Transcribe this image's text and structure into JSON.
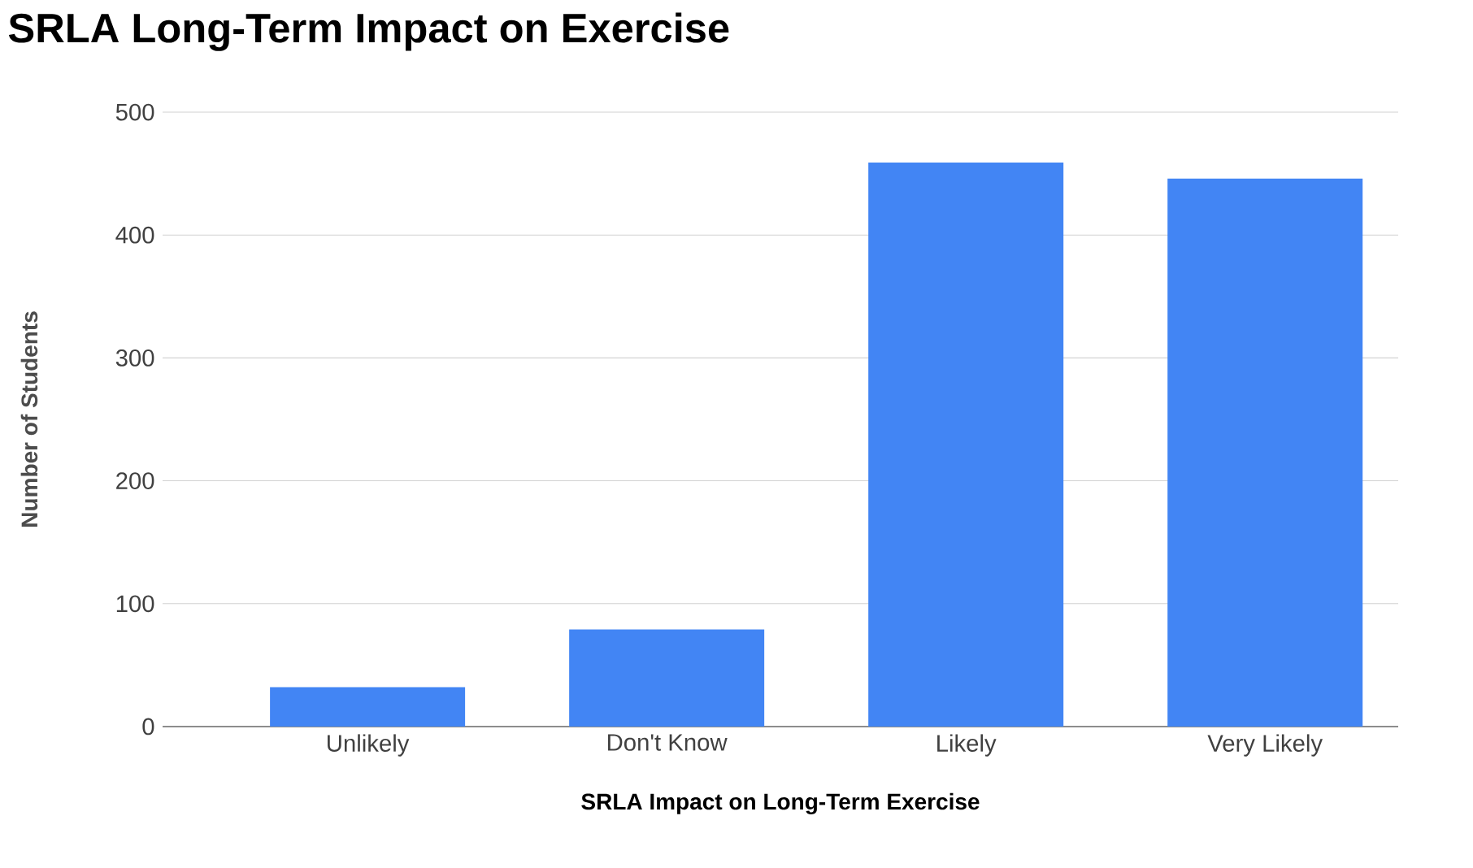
{
  "chart_data": {
    "type": "bar",
    "title": "SRLA Long-Term Impact on Exercise",
    "xlabel": "SRLA Impact on Long-Term Exercise",
    "ylabel": "Number of Students",
    "categories": [
      "Unlikely",
      "Don't Know",
      "Likely",
      "Very Likely"
    ],
    "values": [
      32,
      79,
      459,
      446
    ],
    "color": "#4285f4",
    "ylim": [
      0,
      500
    ],
    "yticks": [
      0,
      100,
      200,
      300,
      400,
      500
    ],
    "grid": "y"
  }
}
